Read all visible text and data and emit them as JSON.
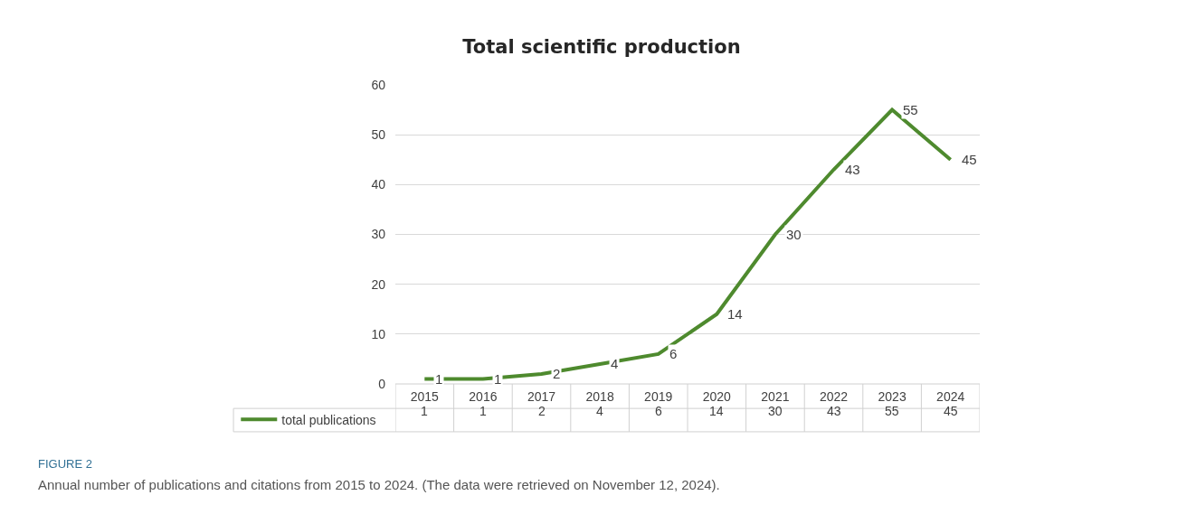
{
  "chart_data": {
    "type": "line",
    "title": "Total scientific production",
    "categories": [
      "2015",
      "2016",
      "2017",
      "2018",
      "2019",
      "2020",
      "2021",
      "2022",
      "2023",
      "2024"
    ],
    "series": [
      {
        "name": "total publications",
        "color": "#4e8a2e",
        "values": [
          1,
          1,
          2,
          4,
          6,
          14,
          30,
          43,
          55,
          45
        ]
      }
    ],
    "ylim": [
      0,
      60
    ],
    "yticks": [
      0,
      10,
      20,
      30,
      40,
      50,
      60
    ],
    "grid": "y",
    "legend": "bottom",
    "data_labels": true,
    "marker": "none",
    "line_style": "solid",
    "annotations": [
      "FIGURE 2",
      "Annual number of publications and citations from 2015 to 2024. (The data were retrieved on November 12, 2024).",
      {
        "text": "1",
        "x": "2015"
      },
      {
        "text": "1",
        "x": "2016"
      },
      {
        "text": "2",
        "x": "2017"
      },
      {
        "text": "4",
        "x": "2018"
      },
      {
        "text": "6",
        "x": "2019"
      },
      {
        "text": "14",
        "x": "2020"
      },
      {
        "text": "30",
        "x": "2021"
      },
      {
        "text": "43",
        "x": "2022"
      },
      {
        "text": "55",
        "x": "2023"
      },
      {
        "text": "45",
        "x": "2024"
      }
    ]
  }
}
